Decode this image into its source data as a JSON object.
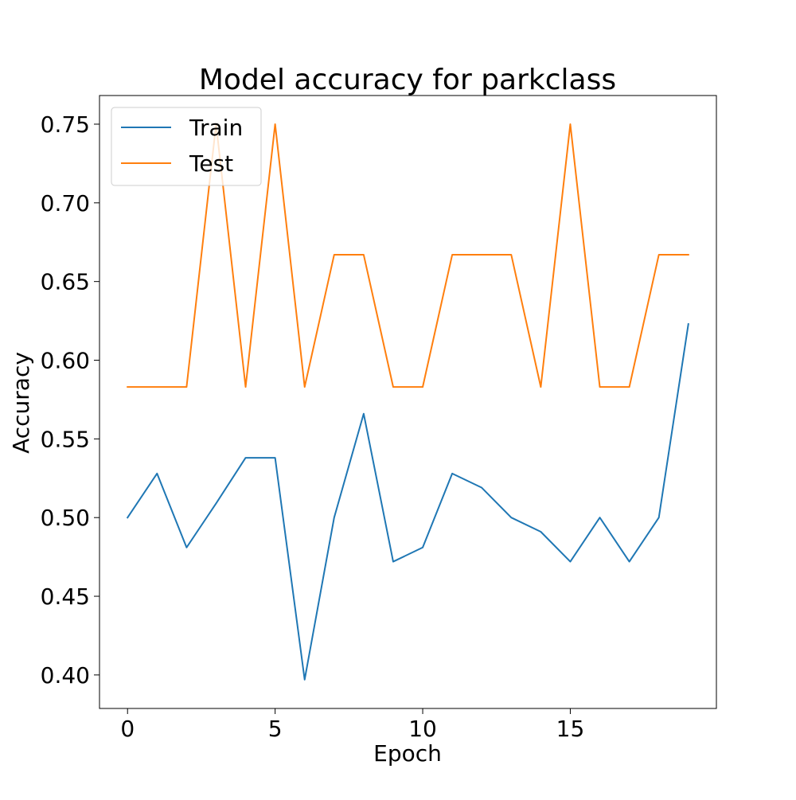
{
  "chart_data": {
    "type": "line",
    "title": "Model accuracy for parkclass",
    "xlabel": "Epoch",
    "ylabel": "Accuracy",
    "x": [
      0,
      1,
      2,
      3,
      4,
      5,
      6,
      7,
      8,
      9,
      10,
      11,
      12,
      13,
      14,
      15,
      16,
      17,
      18,
      19
    ],
    "series": [
      {
        "name": "Train",
        "color": "#1f77b4",
        "values": [
          0.5,
          0.528,
          0.481,
          0.509,
          0.538,
          0.538,
          0.397,
          0.5,
          0.566,
          0.472,
          0.481,
          0.528,
          0.519,
          0.5,
          0.491,
          0.472,
          0.5,
          0.472,
          0.5,
          0.623
        ]
      },
      {
        "name": "Test",
        "color": "#ff7f0e",
        "values": [
          0.583,
          0.583,
          0.583,
          0.75,
          0.583,
          0.75,
          0.583,
          0.667,
          0.667,
          0.583,
          0.583,
          0.667,
          0.667,
          0.667,
          0.583,
          0.75,
          0.583,
          0.583,
          0.667,
          0.667
        ]
      }
    ],
    "xlim": [
      -0.95,
      19.95
    ],
    "ylim": [
      0.3787,
      0.7682
    ],
    "xticks": [
      0,
      5,
      10,
      15
    ],
    "xtick_labels": [
      "0",
      "5",
      "10",
      "15"
    ],
    "yticks": [
      0.4,
      0.45,
      0.5,
      0.55,
      0.6,
      0.65,
      0.7,
      0.75
    ],
    "ytick_labels": [
      "0.40",
      "0.45",
      "0.50",
      "0.55",
      "0.60",
      "0.65",
      "0.70",
      "0.75"
    ],
    "grid": false,
    "legend": {
      "placement": "upper left",
      "entries": [
        "Train",
        "Test"
      ]
    }
  }
}
